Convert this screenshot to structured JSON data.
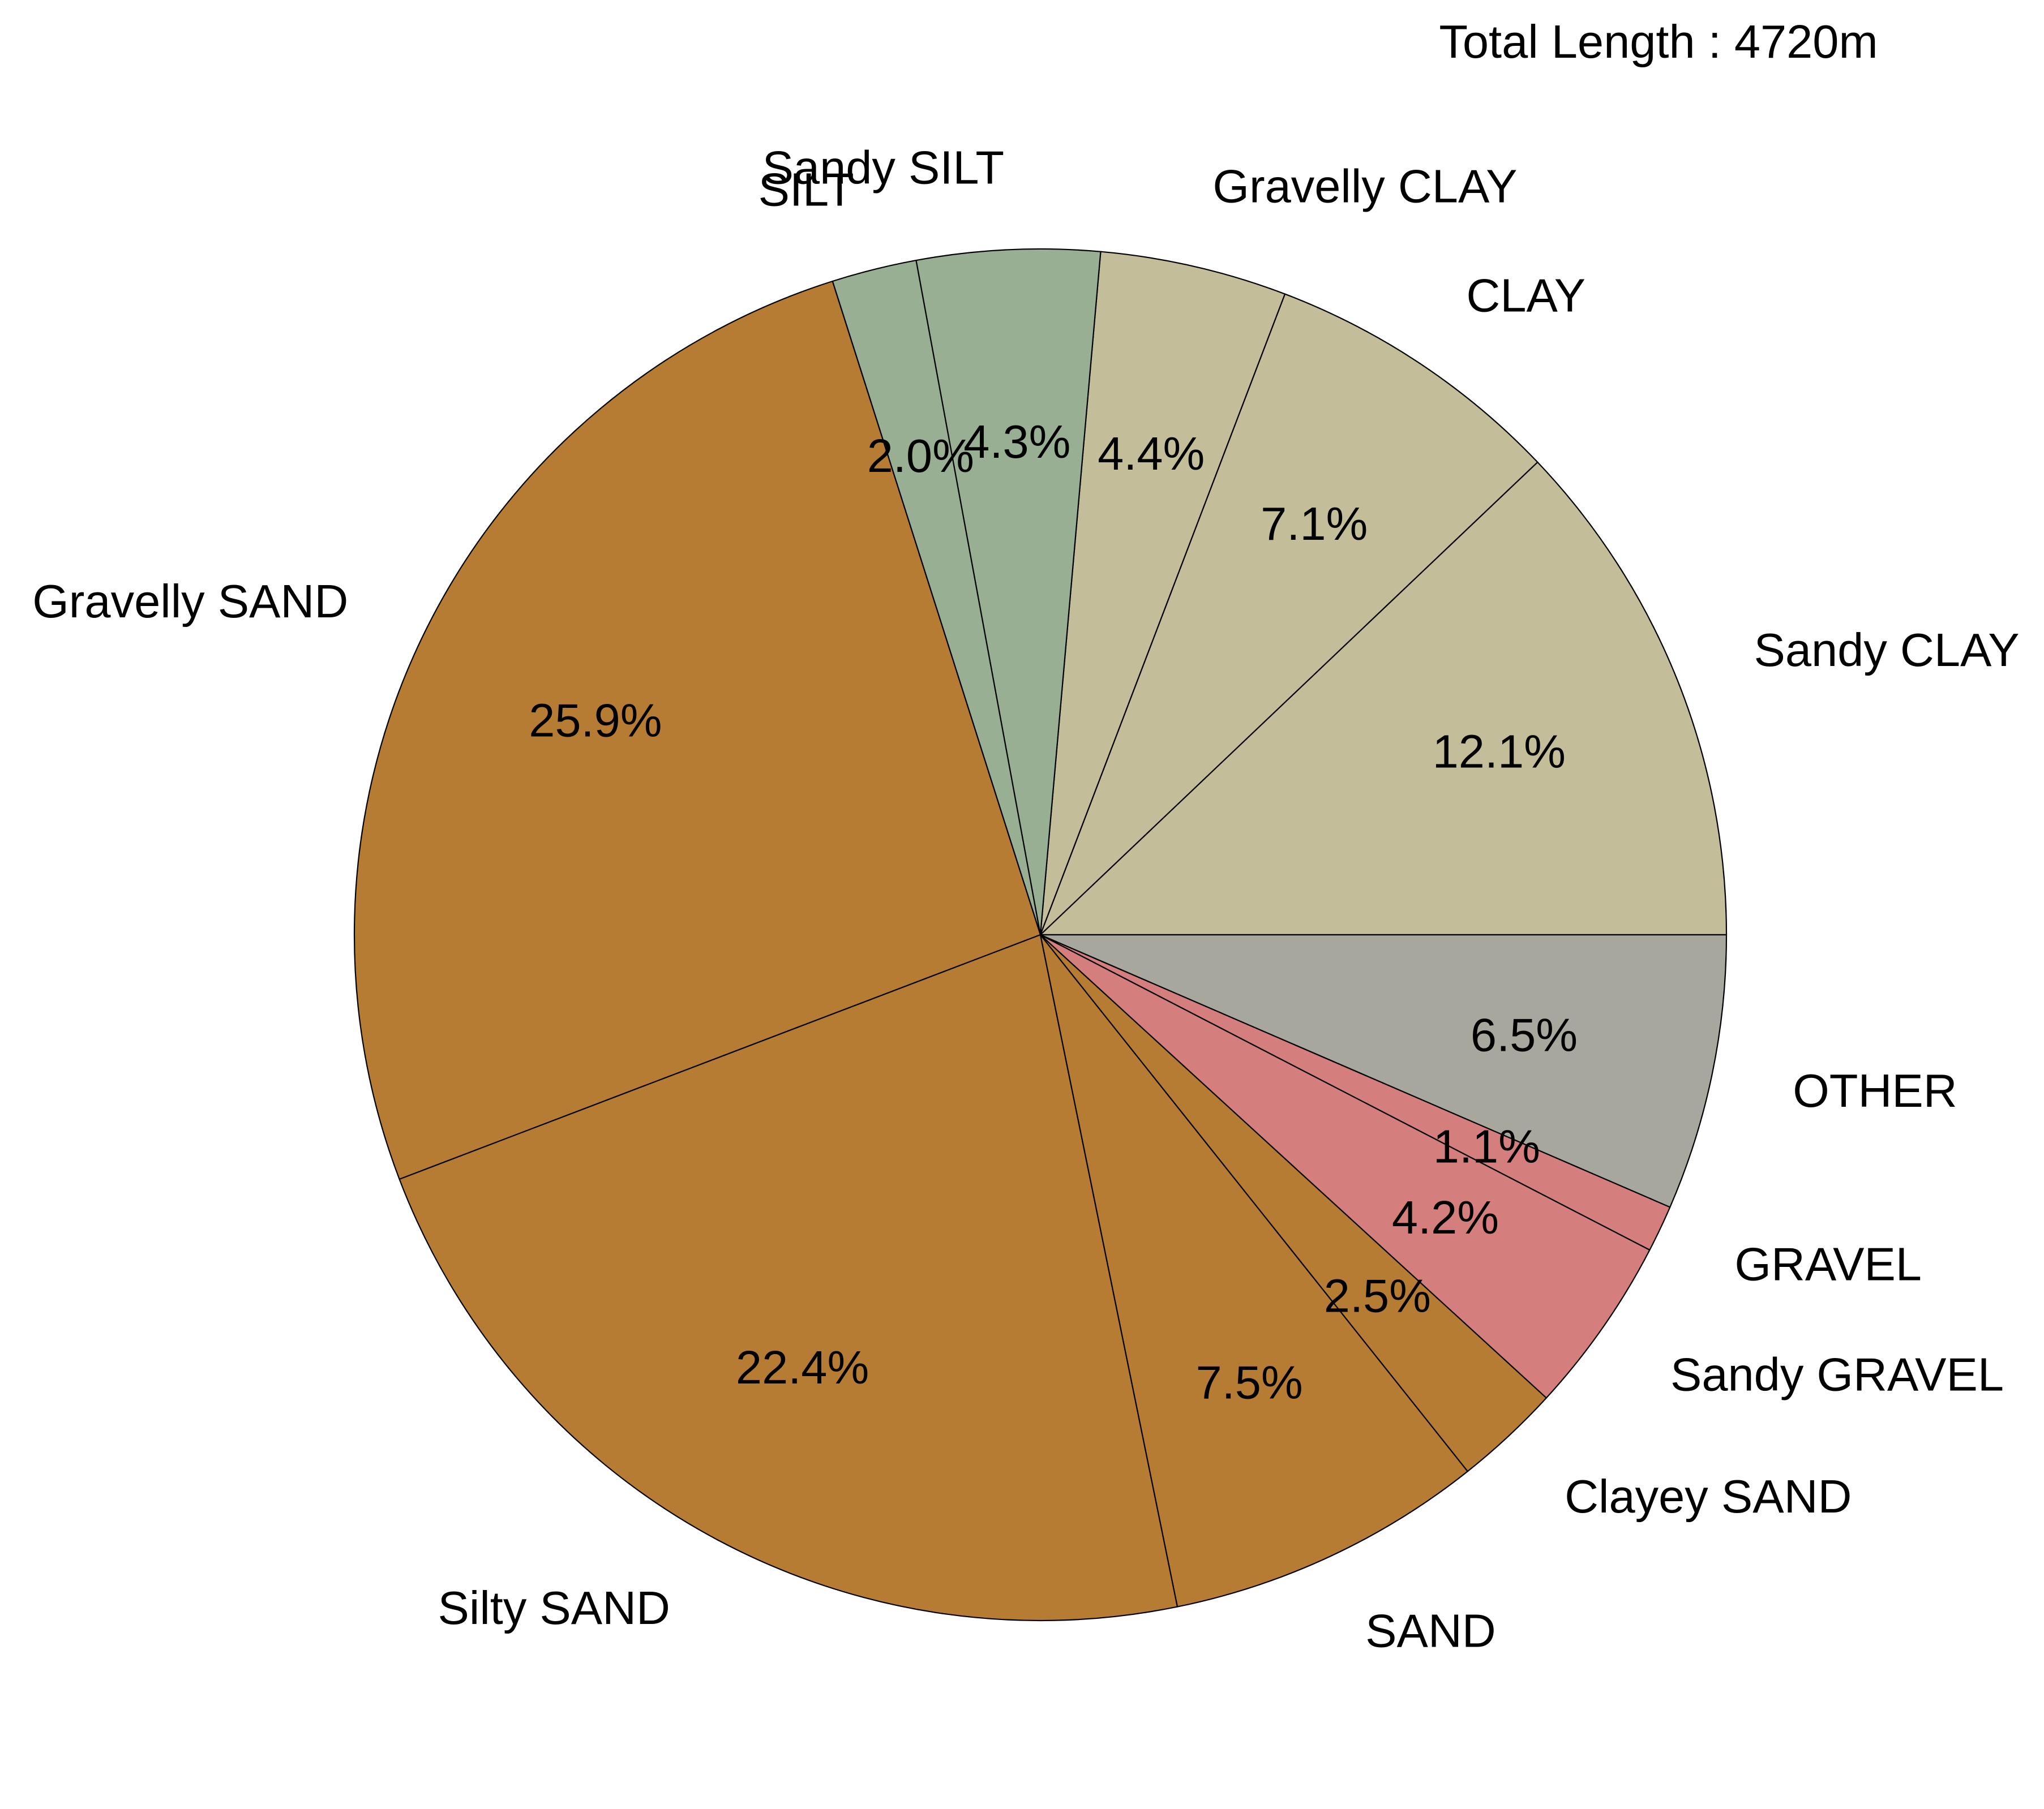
{
  "chart_data": {
    "type": "pie",
    "annotation": "Total Length : 4720m",
    "start_angle_deg": 0,
    "direction": "counterclockwise",
    "slices": [
      {
        "label": "Sandy CLAY",
        "value": 12.1,
        "pct_text": "12.1%",
        "color": "#c4bd99"
      },
      {
        "label": "CLAY",
        "value": 7.1,
        "pct_text": "7.1%",
        "color": "#c4bd99"
      },
      {
        "label": "Gravelly CLAY",
        "value": 4.4,
        "pct_text": "4.4%",
        "color": "#c4bd99"
      },
      {
        "label": "Sandy SILT",
        "value": 4.3,
        "pct_text": "4.3%",
        "color": "#98af94"
      },
      {
        "label": "SILT",
        "value": 2.0,
        "pct_text": "2.0%",
        "color": "#98af94"
      },
      {
        "label": "Gravelly SAND",
        "value": 25.9,
        "pct_text": "25.9%",
        "color": "#b77c34"
      },
      {
        "label": "Silty SAND",
        "value": 22.4,
        "pct_text": "22.4%",
        "color": "#b77c34"
      },
      {
        "label": "SAND",
        "value": 7.5,
        "pct_text": "7.5%",
        "color": "#b77c34"
      },
      {
        "label": "Clayey SAND",
        "value": 2.5,
        "pct_text": "2.5%",
        "color": "#b77c34"
      },
      {
        "label": "Sandy GRAVEL",
        "value": 4.2,
        "pct_text": "4.2%",
        "color": "#d47e7e"
      },
      {
        "label": "GRAVEL",
        "value": 1.1,
        "pct_text": "1.1%",
        "color": "#d47e7e"
      },
      {
        "label": "OTHER",
        "value": 6.5,
        "pct_text": "6.5%",
        "color": "#a8a79e"
      }
    ]
  }
}
